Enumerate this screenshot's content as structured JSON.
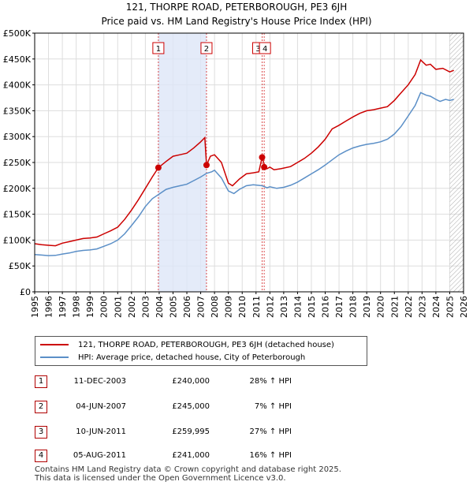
{
  "title_line1": "121, THORPE ROAD, PETERBOROUGH, PE3 6JH",
  "title_line2": "Price paid vs. HM Land Registry's House Price Index (HPI)",
  "chart_data": {
    "type": "line",
    "x_range": [
      1995,
      2026
    ],
    "ylim": [
      0,
      500000
    ],
    "y_ticks": [
      0,
      50000,
      100000,
      150000,
      200000,
      250000,
      300000,
      350000,
      400000,
      450000,
      500000
    ],
    "y_tick_labels": [
      "£0",
      "£50K",
      "£100K",
      "£150K",
      "£200K",
      "£250K",
      "£300K",
      "£350K",
      "£400K",
      "£450K",
      "£500K"
    ],
    "x_ticks": [
      1995,
      1996,
      1997,
      1998,
      1999,
      2000,
      2001,
      2002,
      2003,
      2004,
      2005,
      2006,
      2007,
      2008,
      2009,
      2010,
      2011,
      2012,
      2013,
      2014,
      2015,
      2016,
      2017,
      2018,
      2019,
      2020,
      2021,
      2022,
      2023,
      2024,
      2025,
      2026
    ],
    "grid": true,
    "shaded_region": [
      2003.94,
      2007.42
    ],
    "future_hatch_from": 2025.0,
    "series": [
      {
        "name": "121, THORPE ROAD, PETERBOROUGH, PE3 6JH (detached house)",
        "color": "#cc0000",
        "points": [
          [
            1995.0,
            93000
          ],
          [
            1995.5,
            91000
          ],
          [
            1996.0,
            90000
          ],
          [
            1996.5,
            89000
          ],
          [
            1997.0,
            94000
          ],
          [
            1997.5,
            97000
          ],
          [
            1998.0,
            100000
          ],
          [
            1998.5,
            103000
          ],
          [
            1999.0,
            104000
          ],
          [
            1999.5,
            106000
          ],
          [
            2000.0,
            112000
          ],
          [
            2000.5,
            118000
          ],
          [
            2001.0,
            125000
          ],
          [
            2001.5,
            140000
          ],
          [
            2002.0,
            158000
          ],
          [
            2002.5,
            178000
          ],
          [
            2003.0,
            200000
          ],
          [
            2003.5,
            222000
          ],
          [
            2003.94,
            240000
          ],
          [
            2004.5,
            252000
          ],
          [
            2005.0,
            262000
          ],
          [
            2005.5,
            265000
          ],
          [
            2006.0,
            268000
          ],
          [
            2006.5,
            278000
          ],
          [
            2007.0,
            290000
          ],
          [
            2007.3,
            298000
          ],
          [
            2007.42,
            245000
          ],
          [
            2007.7,
            262000
          ],
          [
            2008.0,
            265000
          ],
          [
            2008.5,
            250000
          ],
          [
            2009.0,
            210000
          ],
          [
            2009.3,
            205000
          ],
          [
            2009.8,
            218000
          ],
          [
            2010.3,
            228000
          ],
          [
            2010.8,
            230000
          ],
          [
            2011.2,
            232000
          ],
          [
            2011.44,
            259995
          ],
          [
            2011.6,
            245000
          ],
          [
            2011.8,
            238000
          ],
          [
            2012.0,
            241000
          ],
          [
            2012.3,
            236000
          ],
          [
            2012.8,
            238000
          ],
          [
            2013.5,
            242000
          ],
          [
            2014.0,
            250000
          ],
          [
            2014.5,
            258000
          ],
          [
            2015.0,
            268000
          ],
          [
            2015.5,
            280000
          ],
          [
            2016.0,
            295000
          ],
          [
            2016.5,
            315000
          ],
          [
            2017.0,
            322000
          ],
          [
            2017.5,
            330000
          ],
          [
            2018.0,
            338000
          ],
          [
            2018.5,
            345000
          ],
          [
            2019.0,
            350000
          ],
          [
            2019.5,
            352000
          ],
          [
            2020.0,
            355000
          ],
          [
            2020.5,
            358000
          ],
          [
            2021.0,
            370000
          ],
          [
            2021.5,
            385000
          ],
          [
            2022.0,
            400000
          ],
          [
            2022.5,
            420000
          ],
          [
            2022.9,
            448000
          ],
          [
            2023.3,
            438000
          ],
          [
            2023.6,
            440000
          ],
          [
            2024.0,
            430000
          ],
          [
            2024.5,
            432000
          ],
          [
            2025.0,
            425000
          ],
          [
            2025.3,
            428000
          ]
        ]
      },
      {
        "name": "HPI: Average price, detached house, City of Peterborough",
        "color": "#5b8fc7",
        "points": [
          [
            1995.0,
            72000
          ],
          [
            1995.5,
            71000
          ],
          [
            1996.0,
            70000
          ],
          [
            1996.5,
            70500
          ],
          [
            1997.0,
            73000
          ],
          [
            1997.5,
            75000
          ],
          [
            1998.0,
            78000
          ],
          [
            1998.5,
            80000
          ],
          [
            1999.0,
            81000
          ],
          [
            1999.5,
            83000
          ],
          [
            2000.0,
            88000
          ],
          [
            2000.5,
            93000
          ],
          [
            2001.0,
            100000
          ],
          [
            2001.5,
            112000
          ],
          [
            2002.0,
            128000
          ],
          [
            2002.5,
            145000
          ],
          [
            2003.0,
            165000
          ],
          [
            2003.5,
            180000
          ],
          [
            2003.94,
            188000
          ],
          [
            2004.5,
            198000
          ],
          [
            2005.0,
            202000
          ],
          [
            2005.5,
            205000
          ],
          [
            2006.0,
            208000
          ],
          [
            2006.5,
            215000
          ],
          [
            2007.0,
            222000
          ],
          [
            2007.42,
            229000
          ],
          [
            2007.8,
            232000
          ],
          [
            2008.0,
            235000
          ],
          [
            2008.5,
            220000
          ],
          [
            2009.0,
            195000
          ],
          [
            2009.4,
            190000
          ],
          [
            2009.8,
            198000
          ],
          [
            2010.3,
            205000
          ],
          [
            2010.8,
            207000
          ],
          [
            2011.44,
            205000
          ],
          [
            2011.8,
            201000
          ],
          [
            2012.0,
            203000
          ],
          [
            2012.5,
            200000
          ],
          [
            2013.0,
            202000
          ],
          [
            2013.5,
            206000
          ],
          [
            2014.0,
            212000
          ],
          [
            2014.5,
            220000
          ],
          [
            2015.0,
            228000
          ],
          [
            2015.5,
            236000
          ],
          [
            2016.0,
            245000
          ],
          [
            2016.5,
            255000
          ],
          [
            2017.0,
            265000
          ],
          [
            2017.5,
            272000
          ],
          [
            2018.0,
            278000
          ],
          [
            2018.5,
            282000
          ],
          [
            2019.0,
            285000
          ],
          [
            2019.5,
            287000
          ],
          [
            2020.0,
            290000
          ],
          [
            2020.5,
            295000
          ],
          [
            2021.0,
            305000
          ],
          [
            2021.5,
            320000
          ],
          [
            2022.0,
            340000
          ],
          [
            2022.5,
            360000
          ],
          [
            2022.9,
            385000
          ],
          [
            2023.3,
            380000
          ],
          [
            2023.6,
            378000
          ],
          [
            2024.0,
            372000
          ],
          [
            2024.3,
            368000
          ],
          [
            2024.7,
            372000
          ],
          [
            2025.0,
            370000
          ],
          [
            2025.3,
            372000
          ]
        ]
      }
    ],
    "sale_markers": [
      {
        "label": "1",
        "x": 2003.94,
        "y": 240000
      },
      {
        "label": "2",
        "x": 2007.42,
        "y": 245000
      },
      {
        "label": "3",
        "x": 2011.44,
        "y": 259995
      },
      {
        "label": "4",
        "x": 2011.59,
        "y": 241000
      }
    ]
  },
  "legend": {
    "red_label": "121, THORPE ROAD, PETERBOROUGH, PE3 6JH (detached house)",
    "blue_label": "HPI: Average price, detached house, City of Peterborough"
  },
  "sales": [
    {
      "num": "1",
      "date": "11-DEC-2003",
      "price": "£240,000",
      "hpi": "28% ↑ HPI"
    },
    {
      "num": "2",
      "date": "04-JUN-2007",
      "price": "£245,000",
      "hpi": "7% ↑ HPI"
    },
    {
      "num": "3",
      "date": "10-JUN-2011",
      "price": "£259,995",
      "hpi": "27% ↑ HPI"
    },
    {
      "num": "4",
      "date": "05-AUG-2011",
      "price": "£241,000",
      "hpi": "16% ↑ HPI"
    }
  ],
  "footer_line1": "Contains HM Land Registry data © Crown copyright and database right 2025.",
  "footer_line2": "This data is licensed under the Open Government Licence v3.0."
}
